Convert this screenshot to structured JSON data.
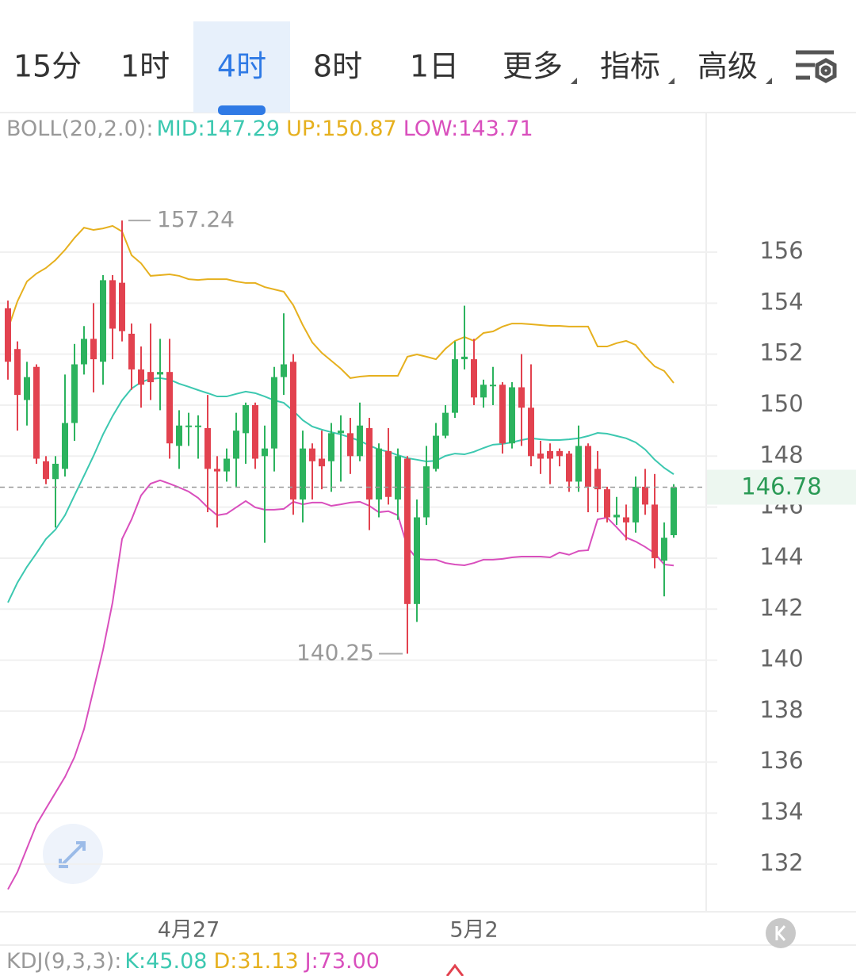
{
  "tabs": [
    {
      "label": "15分"
    },
    {
      "label": "1时"
    },
    {
      "label": "4时",
      "active": true
    },
    {
      "label": "8时"
    },
    {
      "label": "1日"
    },
    {
      "label": "更多",
      "dropdown": true
    },
    {
      "label": "指标",
      "dropdown": true
    },
    {
      "label": "高级",
      "dropdown": true
    }
  ],
  "chart_data": {
    "type": "candlestick",
    "indicator_label": "BOLL(20,2.0):",
    "categories": [
      null,
      null,
      null,
      null,
      null,
      null,
      null,
      null,
      null,
      null,
      null,
      null,
      null,
      null,
      null,
      null,
      null,
      null,
      null,
      "4月27",
      null,
      null,
      null,
      null,
      null,
      null,
      null,
      null,
      null,
      null,
      null,
      null,
      null,
      null,
      null,
      null,
      null,
      null,
      null,
      null,
      null,
      null,
      null,
      null,
      null,
      null,
      null,
      null,
      null,
      "5月2",
      null,
      null,
      null,
      null,
      null,
      null,
      null,
      null,
      null,
      null,
      null,
      null,
      null,
      null,
      null,
      null,
      null,
      null,
      null,
      null,
      null
    ],
    "open": [
      153.8,
      152.2,
      150.2,
      151.5,
      147.8,
      147.1,
      147.5,
      149.3,
      151.6,
      152.6,
      151.7,
      154.9,
      154.8,
      152.8,
      151.4,
      151.3,
      151.2,
      151.3,
      148.4,
      149.2,
      149.2,
      149.1,
      147.5,
      147.4,
      147.9,
      148.9,
      150.0,
      148.0,
      148.3,
      151.1,
      151.7,
      146.3,
      148.3,
      147.9,
      147.8,
      148.9,
      148.9,
      148.0,
      149.1,
      146.3,
      148.2,
      146.3,
      147.9,
      142.2,
      145.6,
      147.5,
      148.8,
      149.7,
      151.8,
      151.8,
      150.3,
      150.8,
      150.8,
      148.5,
      150.7,
      149.9,
      148.1,
      148.2,
      148.2,
      148.1,
      147.0,
      148.4,
      147.5,
      146.7,
      145.6,
      145.6,
      145.4,
      146.8,
      146.1,
      143.9,
      144.9
    ],
    "high": [
      154.1,
      152.5,
      151.7,
      151.6,
      148.0,
      148.0,
      151.2,
      152.4,
      153.1,
      154.0,
      155.1,
      155.1,
      157.24,
      153.2,
      152.3,
      153.2,
      152.6,
      152.6,
      149.8,
      149.7,
      149.6,
      150.4,
      148.0,
      148.3,
      149.7,
      150.1,
      150.1,
      149.2,
      151.5,
      153.6,
      152.0,
      149.0,
      148.5,
      149.0,
      149.3,
      149.6,
      149.5,
      150.1,
      149.5,
      148.5,
      149.1,
      148.3,
      148.0,
      146.3,
      148.4,
      149.3,
      150.0,
      152.5,
      153.9,
      152.6,
      151.0,
      151.5,
      150.9,
      150.9,
      152.0,
      151.6,
      148.6,
      148.5,
      148.3,
      148.2,
      149.2,
      148.5,
      148.2,
      146.8,
      146.4,
      146.1,
      147.2,
      147.5,
      147.3,
      145.4,
      146.9
    ],
    "low": [
      151.0,
      149.0,
      149.2,
      147.7,
      146.9,
      145.2,
      147.2,
      148.6,
      151.2,
      150.5,
      150.8,
      151.8,
      152.5,
      150.6,
      149.9,
      150.2,
      149.8,
      147.9,
      147.5,
      148.4,
      147.9,
      145.8,
      145.2,
      147.0,
      146.8,
      147.7,
      147.5,
      144.6,
      147.4,
      150.4,
      145.7,
      145.4,
      146.3,
      146.7,
      146.6,
      147.0,
      147.3,
      147.8,
      145.1,
      145.6,
      146.1,
      145.5,
      140.25,
      141.5,
      145.3,
      147.4,
      148.7,
      149.5,
      151.4,
      150.0,
      149.9,
      150.0,
      148.1,
      148.3,
      148.4,
      147.6,
      147.3,
      146.9,
      147.6,
      146.6,
      146.6,
      145.8,
      145.8,
      145.4,
      145.3,
      144.7,
      145.0,
      145.7,
      143.6,
      142.5,
      144.8
    ],
    "close": [
      151.7,
      150.4,
      151.1,
      147.9,
      147.1,
      147.7,
      149.3,
      151.6,
      152.6,
      151.8,
      154.9,
      153.0,
      152.9,
      151.4,
      150.8,
      150.9,
      151.3,
      148.5,
      149.2,
      149.2,
      149.2,
      147.5,
      147.4,
      147.9,
      149.0,
      150.0,
      147.9,
      148.3,
      151.1,
      151.6,
      146.3,
      148.3,
      147.8,
      147.6,
      148.9,
      149.0,
      148.0,
      149.2,
      146.3,
      148.3,
      146.4,
      148.0,
      142.2,
      145.6,
      147.6,
      148.8,
      149.7,
      151.8,
      151.9,
      150.3,
      150.8,
      150.8,
      148.5,
      150.7,
      149.9,
      148.0,
      147.9,
      147.9,
      148.0,
      147.0,
      148.4,
      146.8,
      146.7,
      145.6,
      145.7,
      145.4,
      146.8,
      146.1,
      144.0,
      144.8,
      146.78
    ],
    "up_color": "#2cb35e",
    "down_color": "#e2424f",
    "lines": [
      {
        "name": "MID:147.29",
        "color": "#3cc8b0",
        "values": [
          142.26,
          143.04,
          143.66,
          144.19,
          144.75,
          145.12,
          145.68,
          146.46,
          147.23,
          148.01,
          148.85,
          149.57,
          150.19,
          150.65,
          150.9,
          151.03,
          151.06,
          151.0,
          150.84,
          150.72,
          150.59,
          150.47,
          150.34,
          150.34,
          150.44,
          150.53,
          150.47,
          150.34,
          150.19,
          150.09,
          149.78,
          149.41,
          149.16,
          149.04,
          148.94,
          148.85,
          148.73,
          148.6,
          148.42,
          148.26,
          148.17,
          148.04,
          147.92,
          147.86,
          147.79,
          147.82,
          148.01,
          148.1,
          148.07,
          148.17,
          148.32,
          148.45,
          148.48,
          148.54,
          148.63,
          148.7,
          148.66,
          148.63,
          148.63,
          148.66,
          148.7,
          148.79,
          148.91,
          148.88,
          148.79,
          148.7,
          148.54,
          148.26,
          147.86,
          147.54,
          147.29
        ]
      },
      {
        "name": "UP:150.87",
        "color": "#e6b01e",
        "values": [
          152.98,
          154.07,
          154.85,
          155.16,
          155.38,
          155.69,
          156.09,
          156.56,
          156.96,
          156.87,
          156.93,
          157.03,
          156.81,
          155.88,
          155.56,
          155.07,
          155.1,
          155.13,
          155.07,
          154.94,
          154.91,
          154.94,
          154.94,
          154.94,
          154.85,
          154.79,
          154.79,
          154.63,
          154.54,
          154.45,
          153.92,
          153.14,
          152.46,
          152.05,
          151.74,
          151.43,
          151.06,
          151.12,
          151.15,
          151.15,
          151.15,
          151.15,
          151.9,
          151.99,
          151.9,
          151.8,
          152.21,
          152.52,
          152.67,
          152.52,
          152.83,
          152.89,
          153.08,
          153.2,
          153.2,
          153.17,
          153.14,
          153.11,
          153.11,
          153.08,
          153.08,
          153.08,
          152.3,
          152.3,
          152.43,
          152.52,
          152.36,
          151.9,
          151.52,
          151.34,
          150.87
        ]
      },
      {
        "name": "LOW:143.71",
        "color": "#d94fbd",
        "values": [
          131.01,
          131.69,
          132.62,
          133.55,
          134.18,
          134.8,
          135.42,
          136.2,
          137.29,
          138.84,
          140.4,
          142.26,
          144.75,
          145.52,
          146.46,
          146.92,
          147.05,
          146.92,
          146.77,
          146.61,
          146.36,
          145.99,
          145.68,
          145.74,
          145.99,
          146.24,
          145.99,
          145.9,
          145.9,
          145.93,
          146.21,
          146.11,
          146.18,
          146.18,
          146.05,
          146.11,
          146.18,
          146.21,
          146.05,
          145.8,
          145.84,
          145.68,
          144.44,
          143.97,
          143.94,
          143.94,
          143.81,
          143.75,
          143.72,
          143.81,
          143.94,
          143.94,
          143.97,
          144.03,
          144.06,
          144.06,
          144.06,
          144.03,
          144.22,
          144.13,
          144.28,
          144.31,
          145.52,
          145.59,
          145.21,
          144.81,
          144.65,
          144.44,
          144.19,
          143.75,
          143.71
        ]
      }
    ],
    "high_label": 157.24,
    "low_label": 140.25,
    "last_price": 146.78,
    "ylim": [
      130.13,
      161.38
    ],
    "yticks": [
      132,
      134,
      136,
      138,
      140,
      142,
      144,
      146,
      148,
      150,
      152,
      154,
      156
    ],
    "grid": true
  },
  "kdj_legend": {
    "label": "KDJ(9,3,3):",
    "items": [
      {
        "text": "K:45.08",
        "color": "#3cc8b0"
      },
      {
        "text": "D:31.13",
        "color": "#e6b01e"
      },
      {
        "text": "J:73.00",
        "color": "#d94fbd"
      }
    ]
  }
}
